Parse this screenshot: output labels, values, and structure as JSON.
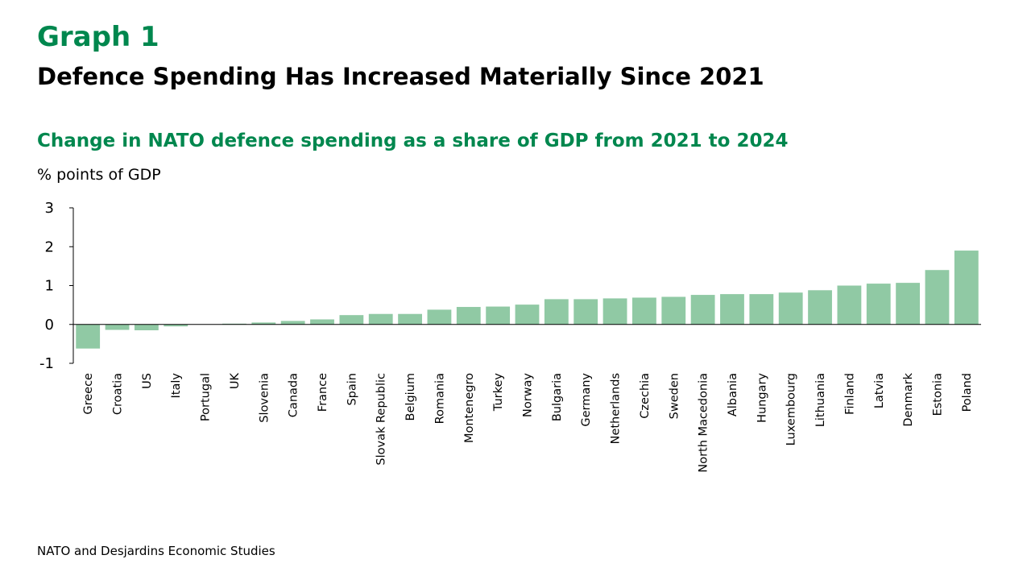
{
  "header": {
    "graph_label": "Graph 1",
    "title": "Defence Spending Has Increased Materially Since 2021"
  },
  "footer": {
    "source": "NATO and Desjardins Economic Studies"
  },
  "chart_data": {
    "type": "bar",
    "title": "Change in NATO defence spending as a share of GDP from 2021 to 2024",
    "ylabel": "% points of GDP",
    "xlabel": "",
    "ylim": [
      -1,
      3
    ],
    "yticks": [
      -1,
      0,
      1,
      2,
      3
    ],
    "grid": false,
    "legend": "none",
    "bar_color": "#90c9a4",
    "categories": [
      "Greece",
      "Croatia",
      "US",
      "Italy",
      "Portugal",
      "UK",
      "Slovenia",
      "Canada",
      "France",
      "Spain",
      "Slovak Republic",
      "Belgium",
      "Romania",
      "Montenegro",
      "Turkey",
      "Norway",
      "Bulgaria",
      "Germany",
      "Netherlands",
      "Czechia",
      "Sweden",
      "North Macedonia",
      "Albania",
      "Hungary",
      "Luxembourg",
      "Lithuania",
      "Finland",
      "Latvia",
      "Denmark",
      "Estonia",
      "Poland"
    ],
    "values": [
      -0.62,
      -0.14,
      -0.15,
      -0.05,
      0.0,
      0.02,
      0.05,
      0.09,
      0.13,
      0.24,
      0.27,
      0.27,
      0.38,
      0.45,
      0.46,
      0.51,
      0.65,
      0.65,
      0.67,
      0.69,
      0.71,
      0.76,
      0.78,
      0.78,
      0.82,
      0.88,
      1.0,
      1.05,
      1.07,
      1.4,
      1.9
    ]
  }
}
